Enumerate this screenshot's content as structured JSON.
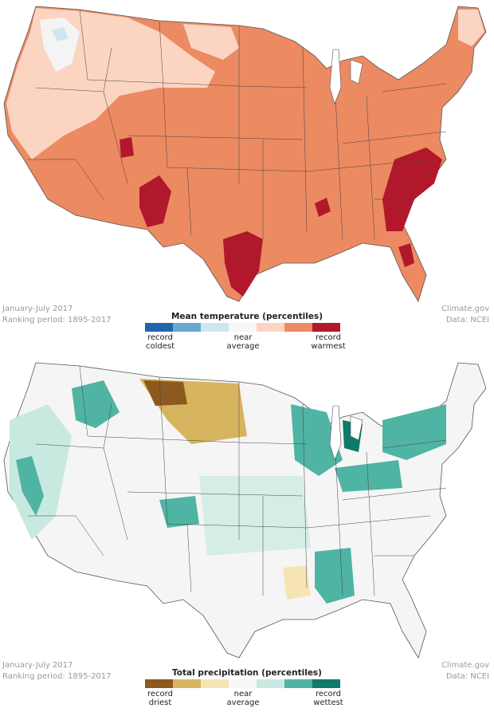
{
  "panels": [
    {
      "id": "temperature",
      "period": "January-July 2017",
      "ranking": "Ranking period: 1895-2017",
      "source": "Climate.gov",
      "data_source": "Data: NCEI",
      "legend_title": "Mean temperature (percentiles)",
      "legend_low": [
        "record",
        "coldest"
      ],
      "legend_mid": [
        "near",
        "average"
      ],
      "legend_high": [
        "record",
        "warmest"
      ],
      "scale_colors": [
        "#2166ac",
        "#67a9cf",
        "#d1e5f0",
        "#f7f7f7",
        "#fbd5c2",
        "#ec8a62",
        "#b2182b"
      ]
    },
    {
      "id": "precipitation",
      "period": "January-July 2017",
      "ranking": "Ranking period: 1895-2017",
      "source": "Climate.gov",
      "data_source": "Data: NCEI",
      "legend_title": "Total precipitation (percentiles)",
      "legend_low": [
        "record",
        "driest"
      ],
      "legend_mid": [
        "near",
        "average"
      ],
      "legend_high": [
        "record",
        "wettest"
      ],
      "scale_colors": [
        "#8c5a1e",
        "#d7b45e",
        "#f6e4b5",
        "#f7f7f7",
        "#c7e9e0",
        "#4fb4a4",
        "#0e7a6a"
      ]
    }
  ]
}
